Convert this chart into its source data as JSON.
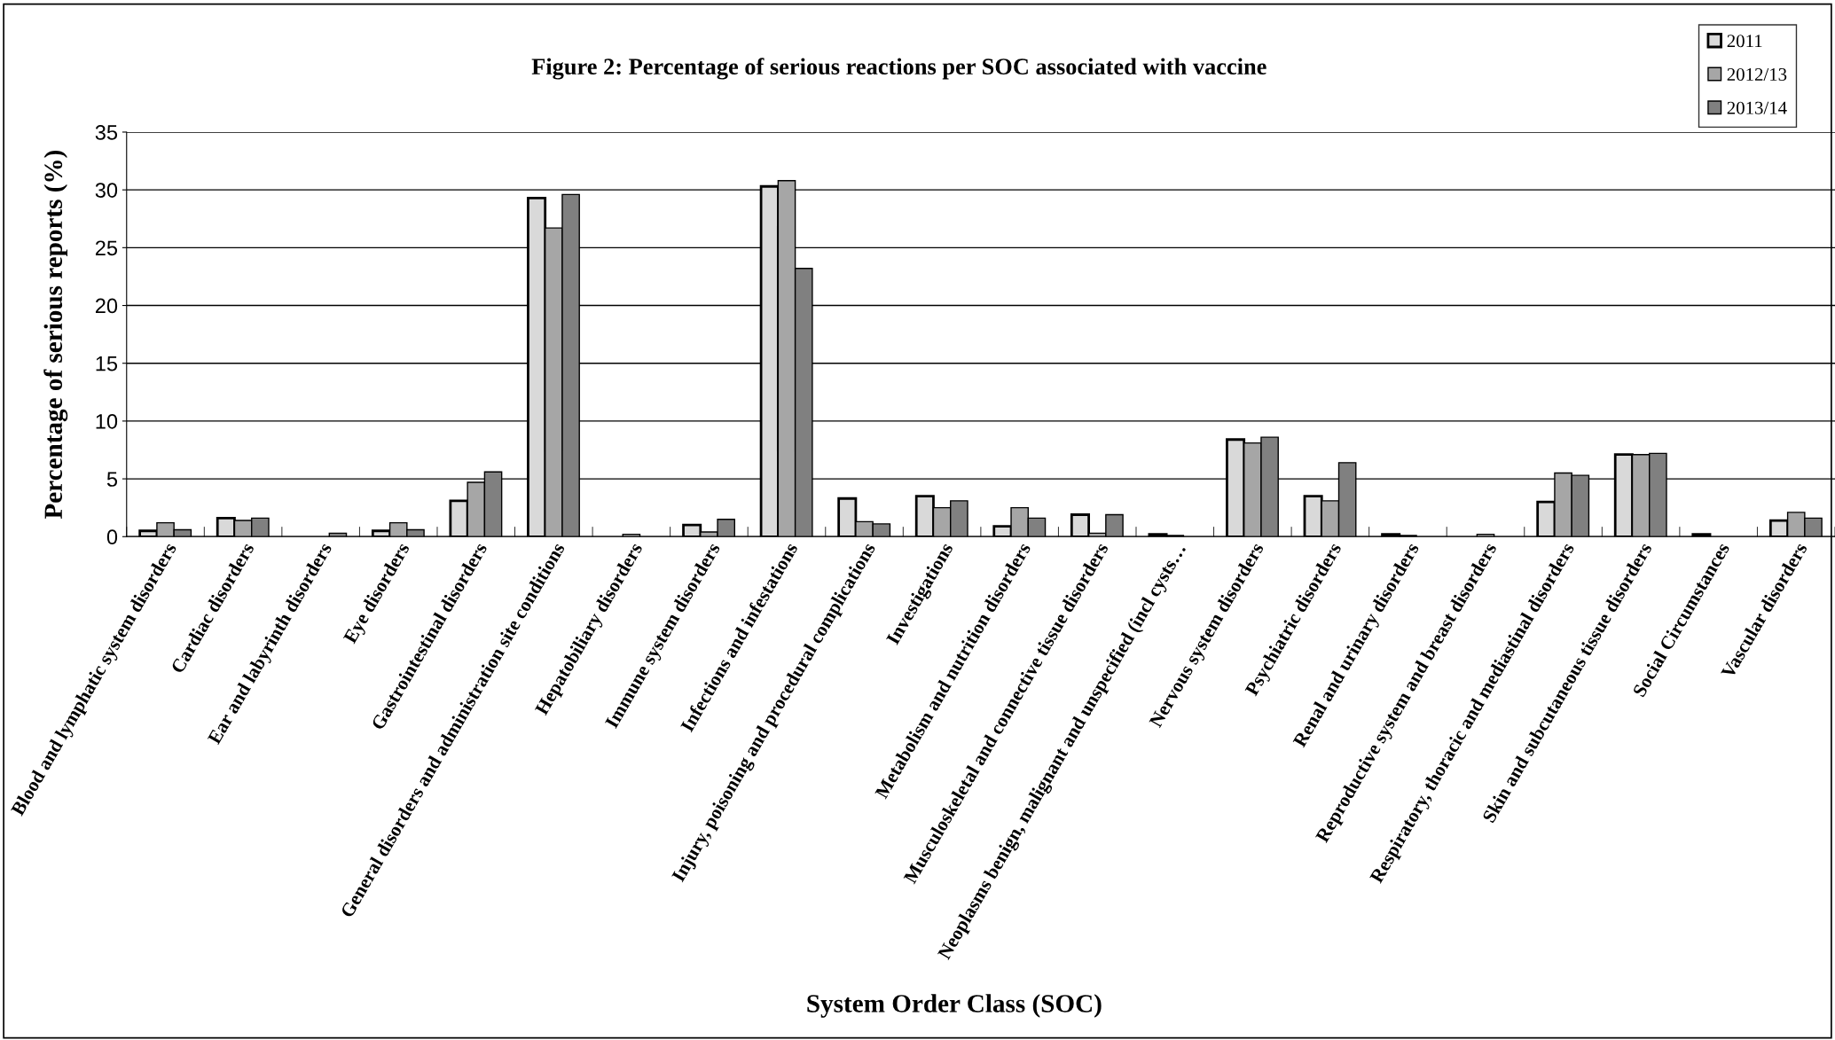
{
  "chart_data": {
    "type": "bar",
    "title": "Figure 2: Percentage of serious reactions per SOC associated with vaccine",
    "xlabel": "System Order Class (SOC)",
    "ylabel": "Percentage of serious reports (%)",
    "categories": [
      "Blood and lymphatic system disorders",
      "Cardiac disorders",
      "Ear and labyrinth disorders",
      "Eye disorders",
      "Gastrointestinal disorders",
      "General disorders and administration site conditions",
      "Hepatobiliary disorders",
      "Immune system disorders",
      "Infections and infestations",
      "Injury, poisoning and procedural complications",
      "Investigations",
      "Metabolism and nutrition disorders",
      "Musculoskeletal and connective tissue disorders",
      "Neoplasms benign, malignant and unspecified (incl cysts…",
      "Nervous system disorders",
      "Psychiatric disorders",
      "Renal and urinary disorders",
      "Reproductive system and breast disorders",
      "Respiratory, thoracic and mediastinal disorders",
      "Skin and subcutaneous tissue disorders",
      "Social Circumstances",
      "Vascular disorders"
    ],
    "series": [
      {
        "name": "2011",
        "color": "#d9d9d9",
        "values": [
          0.5,
          1.6,
          0,
          0.5,
          3.1,
          29.3,
          0,
          1.0,
          30.3,
          3.3,
          3.5,
          0.9,
          1.9,
          0.2,
          8.4,
          3.5,
          0.2,
          0,
          3.0,
          7.1,
          0.2,
          1.4
        ]
      },
      {
        "name": "2012/13",
        "color": "#a6a6a6",
        "values": [
          1.2,
          1.4,
          0,
          1.2,
          4.7,
          26.7,
          0.2,
          0.4,
          30.8,
          1.3,
          2.5,
          2.5,
          0.3,
          0.1,
          8.1,
          3.1,
          0.1,
          0.2,
          5.5,
          7.1,
          0,
          2.1
        ]
      },
      {
        "name": "2013/14",
        "color": "#808080",
        "values": [
          0.6,
          1.6,
          0.3,
          0.6,
          5.6,
          29.6,
          0,
          1.5,
          23.2,
          1.1,
          3.1,
          1.6,
          1.9,
          0,
          8.6,
          6.4,
          0,
          0,
          5.3,
          7.2,
          0,
          1.6
        ]
      }
    ],
    "ylim": [
      0,
      35
    ],
    "yticks": [
      0,
      5,
      10,
      15,
      20,
      25,
      30,
      35
    ],
    "grid": "y",
    "legend": "top right"
  }
}
